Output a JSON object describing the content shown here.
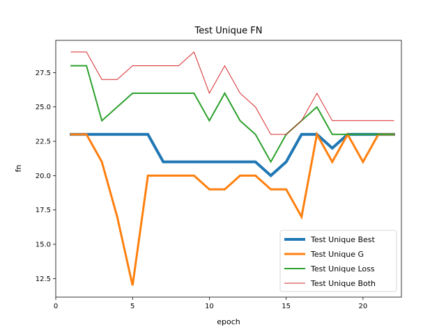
{
  "chart_data": {
    "type": "line",
    "title": "Test Unique FN",
    "xlabel": "epoch",
    "ylabel": "fn",
    "xlim": [
      0,
      22.5
    ],
    "ylim": [
      11.15,
      29.85
    ],
    "xticks": [
      0,
      5,
      10,
      15,
      20
    ],
    "yticks": [
      12.5,
      15.0,
      17.5,
      20.0,
      22.5,
      25.0,
      27.5
    ],
    "ytick_labels": [
      "12.5",
      "15.0",
      "17.5",
      "20.0",
      "22.5",
      "25.0",
      "27.5"
    ],
    "grid": false,
    "legend_position": "lower-right",
    "x": [
      1,
      2,
      3,
      4,
      5,
      6,
      7,
      8,
      9,
      10,
      11,
      12,
      13,
      14,
      15,
      16,
      17,
      18,
      19,
      20,
      21,
      22
    ],
    "series": [
      {
        "name": "Test Unique Best",
        "color": "#1f77b4",
        "width": 4,
        "values": [
          23,
          23,
          23,
          23,
          23,
          23,
          21,
          21,
          21,
          21,
          21,
          21,
          21,
          20,
          21,
          23,
          23,
          22,
          23,
          23,
          23,
          23
        ]
      },
      {
        "name": "Test Unique G",
        "color": "#ff7f0e",
        "width": 3,
        "values": [
          23,
          23,
          21,
          17,
          12,
          20,
          20,
          20,
          20,
          19,
          19,
          20,
          20,
          19,
          19,
          17,
          23,
          21,
          23,
          21,
          23,
          23
        ]
      },
      {
        "name": "Test Unique Loss",
        "color": "#2ca02c",
        "width": 2,
        "values": [
          28,
          28,
          24,
          25,
          26,
          26,
          26,
          26,
          26,
          24,
          26,
          24,
          23,
          21,
          23,
          24,
          25,
          23,
          23,
          23,
          23,
          23
        ]
      },
      {
        "name": "Test Unique Both",
        "color": "#d62728",
        "width": 1,
        "values": [
          29,
          29,
          27,
          27,
          28,
          28,
          28,
          28,
          29,
          26,
          28,
          26,
          25,
          23,
          23,
          24,
          26,
          24,
          24,
          24,
          24,
          24
        ]
      }
    ]
  }
}
